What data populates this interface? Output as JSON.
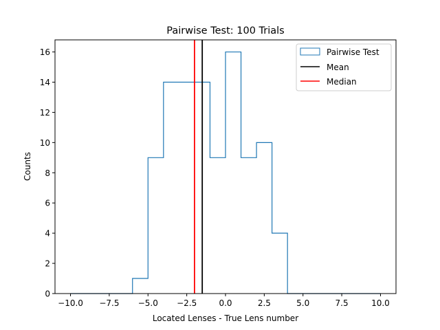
{
  "chart_data": {
    "type": "histogram",
    "title": "Pairwise Test: 100 Trials",
    "xlabel": "Located Lenses - True Lens number",
    "ylabel": "Counts",
    "xlim": [
      -11,
      11
    ],
    "ylim": [
      0,
      16.8
    ],
    "x_ticks": [
      -10,
      -7.5,
      -5,
      -2.5,
      0,
      2.5,
      5,
      7.5,
      10
    ],
    "x_tick_labels": [
      "−10.0",
      "−7.5",
      "−5.0",
      "−2.5",
      "0.0",
      "2.5",
      "5.0",
      "7.5",
      "10.0"
    ],
    "y_ticks": [
      0,
      2,
      4,
      6,
      8,
      10,
      12,
      14,
      16
    ],
    "y_tick_labels": [
      "0",
      "2",
      "4",
      "6",
      "8",
      "10",
      "12",
      "14",
      "16"
    ],
    "bin_edges": [
      -10,
      -9,
      -8,
      -7,
      -6,
      -5,
      -4,
      -3,
      -2,
      -1,
      0,
      1,
      2,
      3,
      4,
      5,
      6,
      7,
      8,
      9,
      10
    ],
    "counts": [
      0,
      0,
      0,
      0,
      1,
      9,
      14,
      14,
      14,
      9,
      16,
      9,
      10,
      4,
      0,
      0,
      0,
      0,
      0,
      0
    ],
    "mean": -1.5,
    "median": -2,
    "legend_position": "upper right",
    "legend": [
      {
        "label": "Pairwise Test",
        "kind": "patch",
        "color": "#1f77b4"
      },
      {
        "label": "Mean",
        "kind": "line",
        "color": "#000000"
      },
      {
        "label": "Median",
        "kind": "line",
        "color": "#ff0000"
      }
    ],
    "grid": false,
    "colors": {
      "hist": "#1f77b4",
      "mean": "#000000",
      "median": "#ff0000"
    }
  }
}
